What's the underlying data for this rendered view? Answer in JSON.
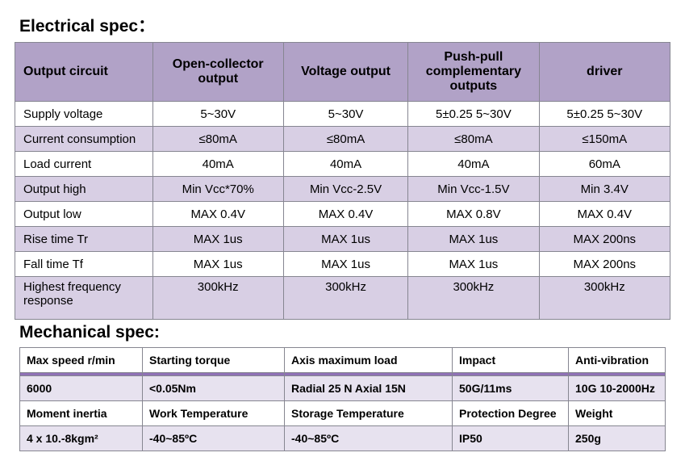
{
  "electrical": {
    "title": "Electrical spec：",
    "columns": [
      "Output circuit",
      "Open-collector output",
      "Voltage output",
      "Push-pull complementary outputs",
      "driver"
    ],
    "colWidths": [
      "21%",
      "20%",
      "19%",
      "20%",
      "20%"
    ],
    "headerBg": "#b1a2c7",
    "altBg": "#d8cfe4",
    "borderColor": "#868691",
    "rows": [
      {
        "alt": false,
        "cells": [
          "Supply voltage",
          "5~30V",
          "5~30V",
          "5±0.25   5~30V",
          "5±0.25   5~30V"
        ]
      },
      {
        "alt": true,
        "cells": [
          "Current consumption",
          "≤80mA",
          "≤80mA",
          "≤80mA",
          "≤150mA"
        ]
      },
      {
        "alt": false,
        "cells": [
          "Load current",
          "40mA",
          "40mA",
          "40mA",
          "60mA"
        ]
      },
      {
        "alt": true,
        "cells": [
          "Output high",
          "Min Vcc*70%",
          "Min Vcc-2.5V",
          "Min Vcc-1.5V",
          "Min 3.4V"
        ]
      },
      {
        "alt": false,
        "cells": [
          "Output low",
          "MAX 0.4V",
          "MAX 0.4V",
          "MAX 0.8V",
          "MAX 0.4V"
        ]
      },
      {
        "alt": true,
        "cells": [
          "Rise time Tr",
          "MAX 1us",
          "MAX 1us",
          "MAX 1us",
          "MAX 200ns"
        ]
      },
      {
        "alt": false,
        "cells": [
          "Fall time Tf",
          "MAX 1us",
          "MAX 1us",
          "MAX 1us",
          "MAX 200ns"
        ]
      },
      {
        "alt": true,
        "tall": true,
        "cells": [
          "Highest frequency response",
          "300kHz",
          "300kHz",
          "300kHz",
          "300kHz"
        ]
      }
    ]
  },
  "mechanical": {
    "title": "Mechanical spec:",
    "colWidths": [
      "19%",
      "22%",
      "26%",
      "18%",
      "15%"
    ],
    "sepColor": "#8f71b6",
    "dataBg": "#e7e2ef",
    "block1": {
      "headers": [
        "Max speed r/min",
        "Starting torque",
        "Axis maximum load",
        "Impact",
        "Anti-vibration"
      ],
      "values": [
        "6000",
        "<0.05Nm",
        "Radial 25 N Axial 15N",
        "50G/11ms",
        "10G   10-2000Hz"
      ]
    },
    "block2": {
      "headers": [
        "Moment inertia",
        "Work Temperature",
        "Storage Temperature",
        "Protection Degree",
        "Weight"
      ],
      "values": [
        "4 x 10.-8kgm²",
        "-40~85ºC",
        "-40~85ºC",
        "IP50",
        "250g"
      ]
    }
  }
}
